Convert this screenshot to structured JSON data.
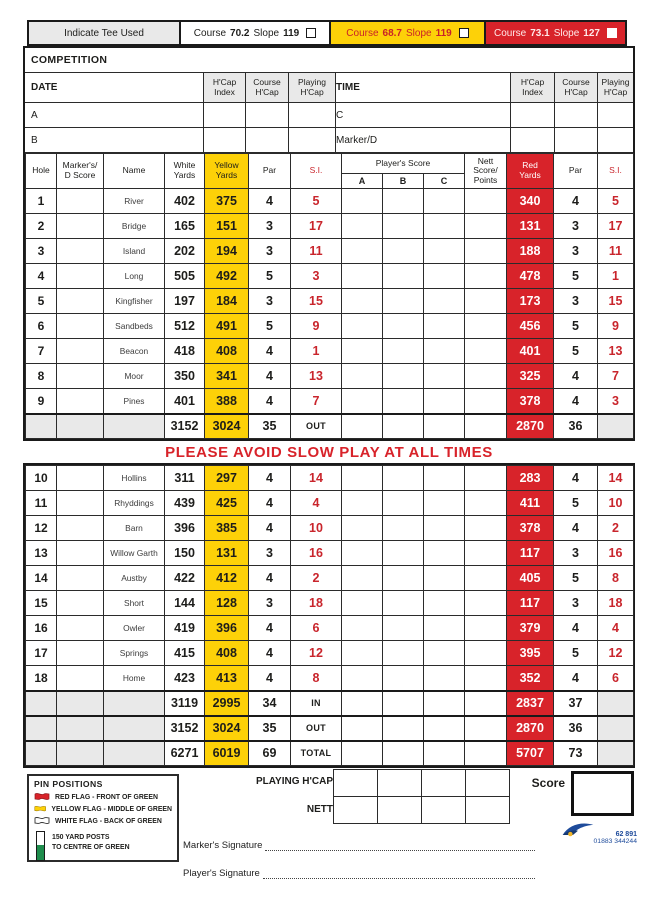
{
  "colors": {
    "red": "#d8232a",
    "yellow": "#fdd108",
    "grey": "#e9e9e9",
    "blue": "#1e4b9b"
  },
  "tee_bar": {
    "indicate_label": "Indicate Tee Used",
    "tees": [
      {
        "name": "white",
        "course_label": "Course",
        "course_value": "70.2",
        "slope_label": "Slope",
        "slope_value": "119"
      },
      {
        "name": "yellow",
        "course_label": "Course",
        "course_value": "68.7",
        "slope_label": "Slope",
        "slope_value": "119"
      },
      {
        "name": "red",
        "course_label": "Course",
        "course_value": "73.1",
        "slope_label": "Slope",
        "slope_value": "127"
      }
    ]
  },
  "competition": {
    "label": "COMPETITION"
  },
  "info": {
    "date_label": "DATE",
    "time_label": "TIME",
    "hcap_cols": [
      {
        "l1": "H'Cap",
        "l2": "Index"
      },
      {
        "l1": "Course",
        "l2": "H'Cap"
      },
      {
        "l1": "Playing",
        "l2": "H'Cap"
      }
    ],
    "player_a": "A",
    "player_b": "B",
    "player_c": "C",
    "marker_d": "Marker/D"
  },
  "score_table": {
    "headers": {
      "hole": "Hole",
      "marker_l1": "Marker's/",
      "marker_l2": "D Score",
      "name": "Name",
      "white_l1": "White",
      "white_l2": "Yards",
      "yellow_l1": "Yellow",
      "yellow_l2": "Yards",
      "par": "Par",
      "si": "S.I.",
      "players_score": "Player's Score",
      "a": "A",
      "b": "B",
      "c": "C",
      "nett_l1": "Nett",
      "nett_l2": "Score/",
      "nett_l3": "Points",
      "red_l1": "Red",
      "red_l2": "Yards",
      "par2": "Par",
      "si2": "S.I."
    },
    "front_nine": [
      {
        "hole": "1",
        "name": "River",
        "white": "402",
        "yellow": "375",
        "par": "4",
        "si": "5",
        "red": "340",
        "red_par": "4",
        "red_si": "5"
      },
      {
        "hole": "2",
        "name": "Bridge",
        "white": "165",
        "yellow": "151",
        "par": "3",
        "si": "17",
        "red": "131",
        "red_par": "3",
        "red_si": "17"
      },
      {
        "hole": "3",
        "name": "Island",
        "white": "202",
        "yellow": "194",
        "par": "3",
        "si": "11",
        "red": "188",
        "red_par": "3",
        "red_si": "11"
      },
      {
        "hole": "4",
        "name": "Long",
        "white": "505",
        "yellow": "492",
        "par": "5",
        "si": "3",
        "red": "478",
        "red_par": "5",
        "red_si": "1"
      },
      {
        "hole": "5",
        "name": "Kingfisher",
        "white": "197",
        "yellow": "184",
        "par": "3",
        "si": "15",
        "red": "173",
        "red_par": "3",
        "red_si": "15"
      },
      {
        "hole": "6",
        "name": "Sandbeds",
        "white": "512",
        "yellow": "491",
        "par": "5",
        "si": "9",
        "red": "456",
        "red_par": "5",
        "red_si": "9"
      },
      {
        "hole": "7",
        "name": "Beacon",
        "white": "418",
        "yellow": "408",
        "par": "4",
        "si": "1",
        "red": "401",
        "red_par": "5",
        "red_si": "13"
      },
      {
        "hole": "8",
        "name": "Moor",
        "white": "350",
        "yellow": "341",
        "par": "4",
        "si": "13",
        "red": "325",
        "red_par": "4",
        "red_si": "7"
      },
      {
        "hole": "9",
        "name": "Pines",
        "white": "401",
        "yellow": "388",
        "par": "4",
        "si": "7",
        "red": "378",
        "red_par": "4",
        "red_si": "3"
      }
    ],
    "front_summary": {
      "white": "3152",
      "yellow": "3024",
      "par": "35",
      "label": "OUT",
      "red": "2870",
      "red_par": "36"
    },
    "back_nine": [
      {
        "hole": "10",
        "name": "Hollins",
        "white": "311",
        "yellow": "297",
        "par": "4",
        "si": "14",
        "red": "283",
        "red_par": "4",
        "red_si": "14"
      },
      {
        "hole": "11",
        "name": "Rhyddings",
        "white": "439",
        "yellow": "425",
        "par": "4",
        "si": "4",
        "red": "411",
        "red_par": "5",
        "red_si": "10"
      },
      {
        "hole": "12",
        "name": "Barn",
        "white": "396",
        "yellow": "385",
        "par": "4",
        "si": "10",
        "red": "378",
        "red_par": "4",
        "red_si": "2"
      },
      {
        "hole": "13",
        "name": "Willow Garth",
        "white": "150",
        "yellow": "131",
        "par": "3",
        "si": "16",
        "red": "117",
        "red_par": "3",
        "red_si": "16"
      },
      {
        "hole": "14",
        "name": "Austby",
        "white": "422",
        "yellow": "412",
        "par": "4",
        "si": "2",
        "red": "405",
        "red_par": "5",
        "red_si": "8"
      },
      {
        "hole": "15",
        "name": "Short",
        "white": "144",
        "yellow": "128",
        "par": "3",
        "si": "18",
        "red": "117",
        "red_par": "3",
        "red_si": "18"
      },
      {
        "hole": "16",
        "name": "Owler",
        "white": "419",
        "yellow": "396",
        "par": "4",
        "si": "6",
        "red": "379",
        "red_par": "4",
        "red_si": "4"
      },
      {
        "hole": "17",
        "name": "Springs",
        "white": "415",
        "yellow": "408",
        "par": "4",
        "si": "12",
        "red": "395",
        "red_par": "5",
        "red_si": "12"
      },
      {
        "hole": "18",
        "name": "Home",
        "white": "423",
        "yellow": "413",
        "par": "4",
        "si": "8",
        "red": "352",
        "red_par": "4",
        "red_si": "6"
      }
    ],
    "back_summaries": [
      {
        "white": "3119",
        "yellow": "2995",
        "par": "34",
        "label": "IN",
        "red": "2837",
        "red_par": "37"
      },
      {
        "white": "3152",
        "yellow": "3024",
        "par": "35",
        "label": "OUT",
        "red": "2870",
        "red_par": "36"
      },
      {
        "white": "6271",
        "yellow": "6019",
        "par": "69",
        "label": "TOTAL",
        "red": "5707",
        "red_par": "73"
      }
    ]
  },
  "banner": {
    "text": "PLEASE AVOID SLOW PLAY AT ALL TIMES"
  },
  "footer": {
    "pin_positions": {
      "title": "PIN POSITIONS",
      "flags": [
        {
          "color": "red",
          "label": "RED FLAG - FRONT OF GREEN"
        },
        {
          "color": "yellow",
          "label": "YELLOW FLAG - MIDDLE OF GREEN"
        },
        {
          "color": "white",
          "label": "WHITE FLAG - BACK OF GREEN"
        }
      ],
      "post_l1": "150 YARD POSTS",
      "post_l2": "TO CENTRE OF GREEN"
    },
    "playing_hcap_label": "PLAYING H'CAP",
    "nett_label": "NETT",
    "score_label": "Score",
    "marker_sig_label": "Marker's Signature",
    "player_sig_label": "Player's Signature",
    "logo": {
      "code": "62 891",
      "phone": "01883 344244"
    }
  }
}
